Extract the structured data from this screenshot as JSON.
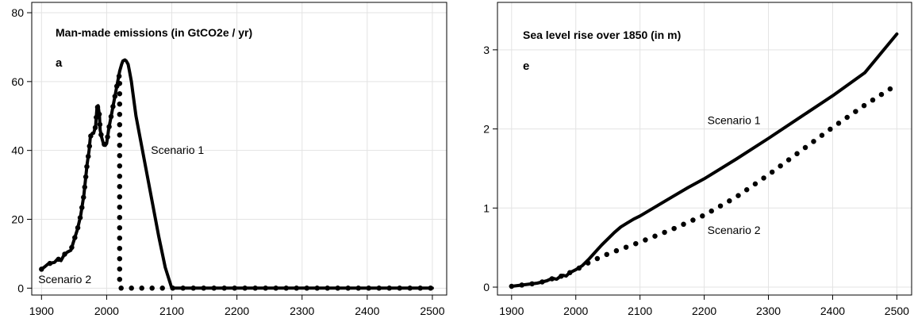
{
  "chart_data": [
    {
      "type": "line",
      "title": "Man-made emissions (in GtCO2e / yr)",
      "panel_letter": "a",
      "xlabel": "",
      "ylabel": "",
      "xlim": [
        1885,
        2522
      ],
      "ylim": [
        -2,
        83
      ],
      "x_ticks": [
        1900,
        2000,
        2100,
        2200,
        2300,
        2400,
        2500
      ],
      "y_ticks": [
        0,
        20,
        40,
        60,
        80
      ],
      "grid": true,
      "series": [
        {
          "name": "Scenario 1",
          "style": "solid",
          "x": [
            1900,
            1905,
            1910,
            1915,
            1920,
            1925,
            1930,
            1935,
            1940,
            1945,
            1950,
            1955,
            1960,
            1965,
            1970,
            1973,
            1975,
            1978,
            1980,
            1983,
            1985,
            1987,
            1989,
            1990,
            1992,
            1995,
            1998,
            2000,
            2003,
            2005,
            2008,
            2010,
            2013,
            2015,
            2018,
            2020,
            2023,
            2025,
            2028,
            2030,
            2033,
            2035,
            2038,
            2040,
            2045,
            2050,
            2060,
            2070,
            2080,
            2090,
            2100,
            2150,
            2200,
            2250,
            2300,
            2350,
            2400,
            2450,
            2500
          ],
          "y": [
            5.5,
            6.2,
            7,
            7.3,
            7.5,
            8.5,
            8,
            9.8,
            10.5,
            11,
            14,
            17,
            21,
            27,
            36,
            40,
            44,
            45,
            45,
            47,
            52,
            53,
            50,
            46,
            44,
            42,
            41.5,
            42,
            46,
            48,
            51,
            53,
            56,
            58,
            61,
            63,
            65,
            66,
            66.3,
            66,
            65,
            63,
            60,
            57,
            50,
            45,
            35,
            25,
            15,
            6,
            0,
            0,
            0,
            0,
            0,
            0,
            0,
            0,
            0
          ]
        },
        {
          "name": "Scenario 2",
          "style": "dotted",
          "x": [
            1900,
            1905,
            1910,
            1915,
            1920,
            1925,
            1930,
            1935,
            1940,
            1945,
            1950,
            1955,
            1960,
            1965,
            1970,
            1973,
            1975,
            1978,
            1980,
            1983,
            1985,
            1987,
            1989,
            1990,
            1992,
            1995,
            1998,
            2000,
            2003,
            2005,
            2008,
            2010,
            2013,
            2015,
            2018,
            2020,
            2020,
            2500
          ],
          "y": [
            5.5,
            6.2,
            7,
            7.3,
            7.5,
            8.5,
            8,
            9.8,
            10.5,
            11,
            14,
            17,
            21,
            27,
            36,
            40,
            44,
            45,
            45,
            47,
            52,
            53,
            50,
            46,
            44,
            42,
            41.5,
            42,
            46,
            48,
            51,
            53,
            56,
            58,
            61,
            62,
            0,
            0
          ]
        }
      ],
      "annotations": [
        {
          "text": "Scenario 1",
          "x": 2068,
          "y": 39
        },
        {
          "text": "Scenario 2",
          "x": 1895,
          "y": 1.5
        }
      ]
    },
    {
      "type": "line",
      "title": "Sea level rise over 1850 (in m)",
      "panel_letter": "e",
      "xlabel": "",
      "ylabel": "",
      "xlim": [
        1878,
        2523
      ],
      "ylim": [
        -0.1,
        3.6
      ],
      "x_ticks": [
        1900,
        2000,
        2100,
        2200,
        2300,
        2400,
        2500
      ],
      "y_ticks": [
        0,
        1,
        2,
        3
      ],
      "grid": true,
      "series": [
        {
          "name": "Scenario 1",
          "style": "solid",
          "x": [
            1900,
            1910,
            1920,
            1930,
            1940,
            1950,
            1955,
            1960,
            1965,
            1970,
            1975,
            1980,
            1985,
            1990,
            1995,
            2000,
            2010,
            2020,
            2030,
            2040,
            2050,
            2060,
            2070,
            2080,
            2090,
            2100,
            2125,
            2150,
            2175,
            2200,
            2250,
            2300,
            2350,
            2400,
            2450,
            2500
          ],
          "y": [
            0.01,
            0.02,
            0.03,
            0.04,
            0.05,
            0.07,
            0.08,
            0.1,
            0.11,
            0.1,
            0.13,
            0.15,
            0.14,
            0.18,
            0.2,
            0.22,
            0.27,
            0.35,
            0.44,
            0.53,
            0.61,
            0.69,
            0.76,
            0.81,
            0.86,
            0.9,
            1.02,
            1.14,
            1.26,
            1.37,
            1.62,
            1.88,
            2.15,
            2.42,
            2.71,
            3.2
          ]
        },
        {
          "name": "Scenario 2",
          "style": "dotted",
          "x": [
            1900,
            1910,
            1920,
            1930,
            1940,
            1950,
            1955,
            1960,
            1965,
            1970,
            1975,
            1980,
            1985,
            1990,
            1995,
            2000,
            2010,
            2020,
            2030,
            2040,
            2050,
            2060,
            2070,
            2080,
            2090,
            2100,
            2125,
            2150,
            2175,
            2200,
            2250,
            2300,
            2350,
            2400,
            2450,
            2500
          ],
          "y": [
            0.01,
            0.02,
            0.03,
            0.04,
            0.05,
            0.07,
            0.08,
            0.1,
            0.11,
            0.1,
            0.13,
            0.15,
            0.14,
            0.18,
            0.2,
            0.22,
            0.26,
            0.31,
            0.35,
            0.38,
            0.42,
            0.45,
            0.48,
            0.51,
            0.54,
            0.57,
            0.65,
            0.73,
            0.82,
            0.91,
            1.14,
            1.42,
            1.72,
            2.02,
            2.3,
            2.56
          ]
        }
      ],
      "annotations": [
        {
          "text": "Scenario 1",
          "x": 2205,
          "y": 2.06
        },
        {
          "text": "Scenario 2",
          "x": 2205,
          "y": 0.67
        }
      ]
    }
  ]
}
